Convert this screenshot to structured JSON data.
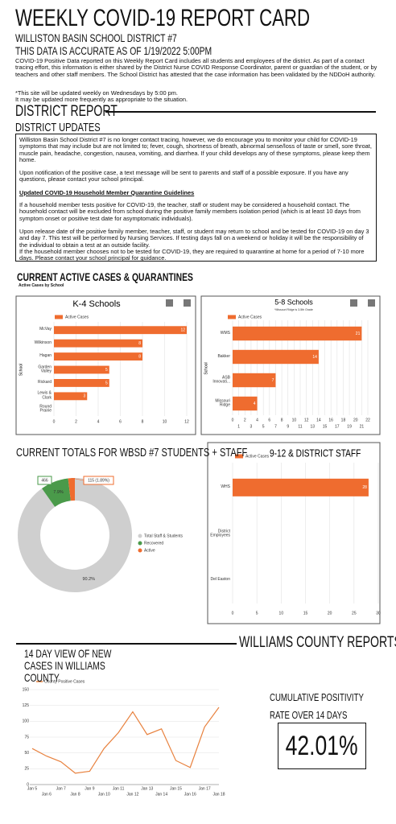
{
  "header": {
    "title": "WEEKLY COVID-19 REPORT CARD",
    "district": "WILLISTON BASIN SCHOOL DISTRICT #7",
    "accuracy": "THIS DATA IS ACCURATE AS OF 1/19/2022 5:00PM",
    "intro": "COVID-19 Positive Data reported on this Weekly Report Card includes all students and employees of the district. As part of a contact tracing effort, this information is either shared by the District Nurse COVID Response Coordinator, parent or guardian of the student, or by teachers and other staff members. The School District has attested that the case information has been validated by the NDDoH authority.",
    "notes": [
      "*This site will be updated weekly on Wednesdays by 5:00 pm.",
      "It may be updated more frequently as appropriate to the situation."
    ]
  },
  "district_report": {
    "heading": "DISTRICT REPORT",
    "subheading": "DISTRICT UPDATES",
    "paragraphs": [
      "Williston Basin School District #7 is no longer contact tracing, however, we do encourage you to monitor your child for COVID-19 symptoms that may include but are not limited to; fever, cough, shortness of breath, abnormal sense/loss of taste or smell, sore throat, muscle pain, headache, congestion, nausea, vomiting, and diarrhea. If your child develops any of these symptoms, please keep them home.",
      "Upon notification of the positive case, a text message will be sent to parents and staff of a possible exposure. If you have any questions, please contact your school principal."
    ],
    "guidelines_heading": "Updated COVID-19 Household Member Quarantine Guidelines",
    "guidelines": [
      "If a household member tests positive for COVID-19, the teacher, staff or student may be considered a household contact. The household contact will be excluded from school during the positive family members isolation period (which is at least 10 days from symptom onset or positive test date for asymptomatic individuals).",
      "Upon release date of the positive family member, teacher, staff, or student may return to school and be tested for COVID-19 on day 3 and day 7. This test will be performed by Nursing Services. If testing days fall on a weekend or holiday it will be the responsibility of the individual to obtain a test at an outside facility.",
      "If the household member chooses not to be tested for COVID-19, they are required to quarantine at home for a period of 7-10 more days. Please contact your school principal for guidance."
    ]
  },
  "sections": {
    "active_cases": {
      "heading": "CURRENT ACTIVE CASES & QUARANTINES",
      "subheading": "Active Cases by School"
    },
    "county": {
      "heading": "WILLIAMS COUNTY REPORTS"
    }
  },
  "positivity": {
    "heading": "CUMULATIVE POSITIVITY RATE OVER 14 DAYS",
    "value": "42.01%"
  },
  "chart_data": [
    {
      "type": "hbar",
      "title": "K-4 Schools",
      "ylabel": "School",
      "categories": [
        "McVay",
        "Wilkinson",
        "Hagan",
        "Garden Valley",
        "Rickard",
        "Lewis & Clark",
        "Round Prairie"
      ],
      "series": [
        {
          "name": "Active Cases",
          "color": "#ef6c2f",
          "values": [
            12,
            8,
            8,
            5,
            5,
            3,
            0
          ]
        }
      ],
      "xlim": [
        0,
        12
      ],
      "xticks": [
        0,
        2,
        4,
        6,
        8,
        10,
        12
      ],
      "grid": true
    },
    {
      "type": "hbar",
      "title": "5-8 Schools",
      "subtitle": "*Missouri Ridge is 3-5th Grade",
      "ylabel": "School",
      "categories": [
        "WMS",
        "Bakker",
        "ASB Innovati...",
        "Missouri Ridge"
      ],
      "series": [
        {
          "name": "Active Cases",
          "color": "#ef6c2f",
          "values": [
            21,
            14,
            7,
            4
          ]
        }
      ],
      "xlim": [
        0,
        22
      ],
      "xticks": [
        0,
        1,
        2,
        3,
        4,
        5,
        6,
        7,
        8,
        9,
        10,
        11,
        12,
        13,
        14,
        15,
        16,
        17,
        18,
        19,
        20,
        21,
        22
      ],
      "grid": true
    },
    {
      "type": "hbar",
      "title": "9-12 & DISTRICT STAFF",
      "categories": [
        "WHS",
        "District Employees",
        "Del Easton"
      ],
      "series": [
        {
          "name": "Active Cases",
          "color": "#ef6c2f",
          "values": [
            28,
            0,
            0
          ]
        }
      ],
      "xlim": [
        0,
        30
      ],
      "xticks": [
        0,
        5,
        10,
        15,
        20,
        25,
        30
      ],
      "grid": true
    },
    {
      "type": "donut",
      "title": "CURRENT TOTALS FOR WBSD #7 STUDENTS + STAFF",
      "categories": [
        "Total Staff & Students",
        "Recovered",
        "Active"
      ],
      "values": [
        90.2,
        7.9,
        1.89
      ],
      "value_labels": [
        "90.2%",
        "7.9%",
        "115 (1.89%)"
      ],
      "colors": [
        "#cfcfcf",
        "#4a9a4a",
        "#ef6c2f"
      ],
      "annotations": [
        {
          "text": "466"
        }
      ]
    },
    {
      "type": "line",
      "title": "14 DAY VIEW OF NEW CASES IN WILLIAMS COUNTY",
      "categories": [
        "Jan 5",
        "Jan 6",
        "Jan 7",
        "Jan 8",
        "Jan 9",
        "Jan 10",
        "Jan 11",
        "Jan 12",
        "Jan 13",
        "Jan 14",
        "Jan 15",
        "Jan 16",
        "Jan 17",
        "Jan 18"
      ],
      "series": [
        {
          "name": "County Positive Cases",
          "color": "#e8823f",
          "values": [
            57,
            45,
            36,
            18,
            21,
            57,
            82,
            115,
            79,
            88,
            38,
            27,
            91,
            122
          ]
        }
      ],
      "ylim": [
        0,
        150
      ],
      "yticks": [
        0,
        25,
        50,
        75,
        100,
        125,
        150
      ],
      "grid": true
    }
  ]
}
